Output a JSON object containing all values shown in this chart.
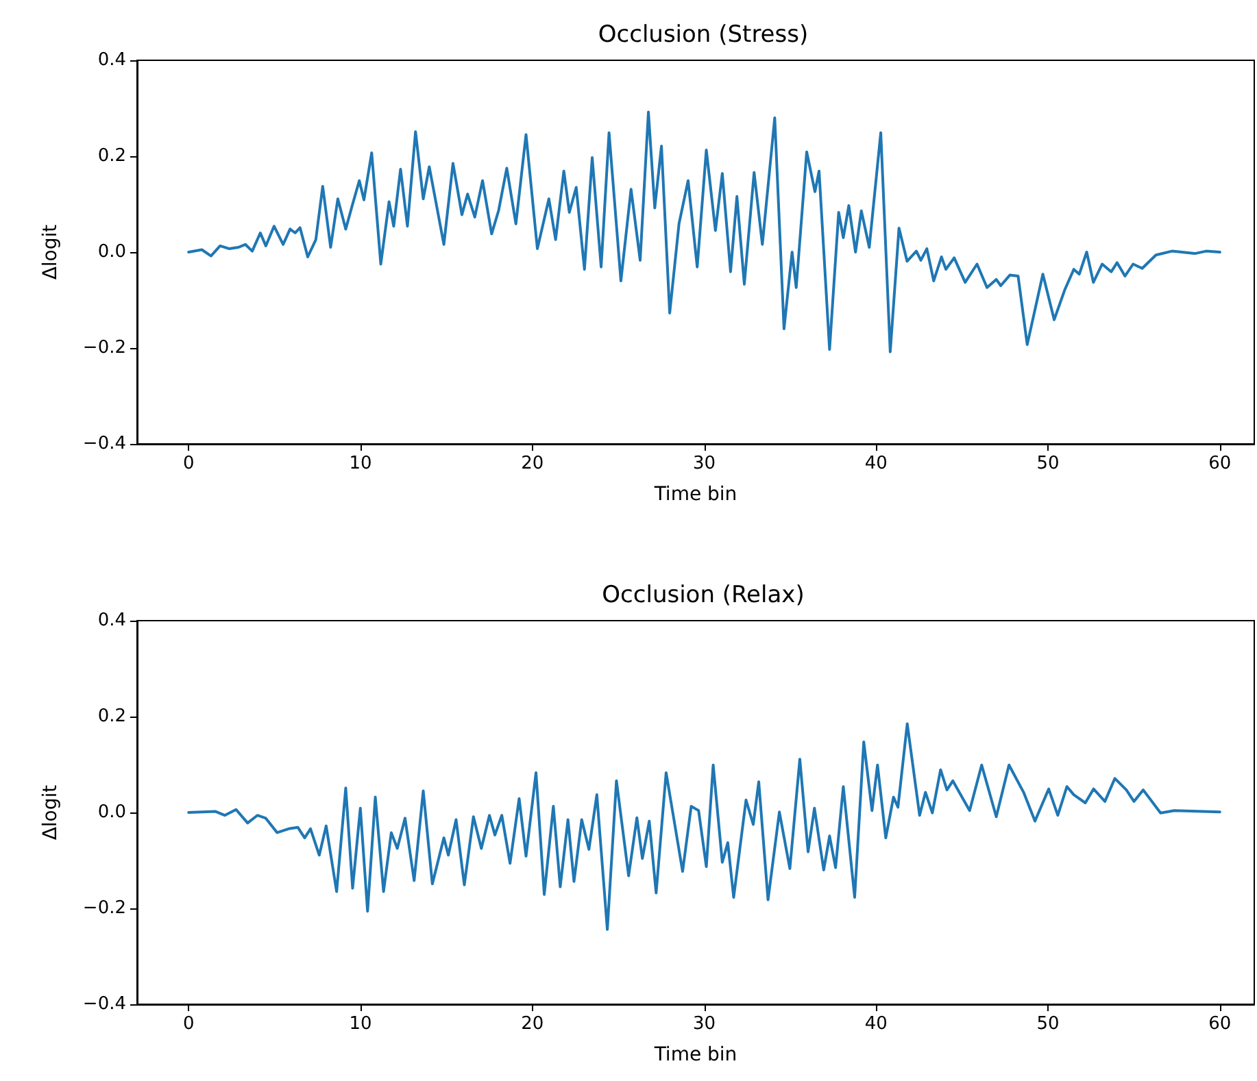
{
  "chart_data": [
    {
      "type": "line",
      "title": "Occlusion (Stress)",
      "xlabel": "Time bin",
      "ylabel": "Δlogit",
      "color": "#1f77b4",
      "x": [
        0,
        0.77,
        1.3,
        1.83,
        2.37,
        2.9,
        3.3,
        3.7,
        4.17,
        4.49,
        4.97,
        5.5,
        5.9,
        6.2,
        6.48,
        6.93,
        7.4,
        7.8,
        8.26,
        8.68,
        9.14,
        9.54,
        9.93,
        10.2,
        10.65,
        11.18,
        11.66,
        11.93,
        12.33,
        12.73,
        13.2,
        13.65,
        14.0,
        14.85,
        15.38,
        15.9,
        16.23,
        16.65,
        17.1,
        17.63,
        18.03,
        18.51,
        19.04,
        19.63,
        20.29,
        20.96,
        21.35,
        21.83,
        22.15,
        22.55,
        23.03,
        23.48,
        24.0,
        24.46,
        25.15,
        25.74,
        26.27,
        26.75,
        27.12,
        27.51,
        27.99,
        28.53,
        29.06,
        29.59,
        30.12,
        30.65,
        31.05,
        31.53,
        31.9,
        32.33,
        32.9,
        33.38,
        34.1,
        34.64,
        35.11,
        35.35,
        35.96,
        36.44,
        36.68,
        37.29,
        37.82,
        38.09,
        38.41,
        38.8,
        39.14,
        39.6,
        40.27,
        40.82,
        41.33,
        41.8,
        42.34,
        42.6,
        42.95,
        43.35,
        43.8,
        44.06,
        44.54,
        45.18,
        45.87,
        46.45,
        46.99,
        47.25,
        47.78,
        48.26,
        48.79,
        49.7,
        50.36,
        50.97,
        51.5,
        51.82,
        52.25,
        52.64,
        53.15,
        53.68,
        54.02,
        54.48,
        54.95,
        55.48,
        56.28,
        57.21,
        58.54,
        59.2,
        60
      ],
      "values": [
        0,
        0.005,
        -0.008,
        0.013,
        0.007,
        0.01,
        0.016,
        0.002,
        0.04,
        0.013,
        0.054,
        0.016,
        0.048,
        0.04,
        0.051,
        -0.01,
        0.026,
        0.137,
        0.01,
        0.111,
        0.048,
        0.1,
        0.149,
        0.109,
        0.207,
        -0.025,
        0.105,
        0.054,
        0.173,
        0.054,
        0.251,
        0.111,
        0.178,
        0.016,
        0.185,
        0.078,
        0.121,
        0.073,
        0.149,
        0.038,
        0.086,
        0.175,
        0.059,
        0.245,
        0.007,
        0.111,
        0.026,
        0.169,
        0.083,
        0.135,
        -0.036,
        0.197,
        -0.031,
        0.249,
        -0.06,
        0.131,
        -0.017,
        0.292,
        0.092,
        0.221,
        -0.127,
        0.059,
        0.149,
        -0.031,
        0.213,
        0.045,
        0.164,
        -0.041,
        0.116,
        -0.067,
        0.166,
        0.016,
        0.28,
        -0.16,
        0,
        -0.074,
        0.209,
        0.126,
        0.169,
        -0.203,
        0.083,
        0.03,
        0.097,
        0,
        0.086,
        0.01,
        0.249,
        -0.208,
        0.05,
        -0.019,
        0.002,
        -0.017,
        0.007,
        -0.06,
        -0.01,
        -0.036,
        -0.012,
        -0.063,
        -0.025,
        -0.074,
        -0.057,
        -0.07,
        -0.048,
        -0.05,
        -0.193,
        -0.046,
        -0.141,
        -0.079,
        -0.036,
        -0.046,
        0,
        -0.063,
        -0.025,
        -0.041,
        -0.022,
        -0.05,
        -0.025,
        -0.034,
        -0.006,
        0.002,
        -0.003,
        0.002,
        0
      ],
      "xlim": [
        -3,
        62
      ],
      "ylim": [
        -0.4,
        0.4
      ],
      "xticks": [
        0,
        10,
        20,
        30,
        40,
        50,
        60
      ],
      "yticks": [
        {
          "value": -0.4,
          "label": "−0.4"
        },
        {
          "value": -0.2,
          "label": "−0.2"
        },
        {
          "value": 0,
          "label": "0.0"
        },
        {
          "value": 0.2,
          "label": "0.2"
        },
        {
          "value": 0.4,
          "label": "0.4"
        }
      ]
    },
    {
      "type": "line",
      "title": "Occlusion (Relax)",
      "xlabel": "Time bin",
      "ylabel": "Δlogit",
      "color": "#1f77b4",
      "x": [
        0,
        1.57,
        2.1,
        2.76,
        3.43,
        4.0,
        4.49,
        5.15,
        5.82,
        6.35,
        6.75,
        7.09,
        7.6,
        8.0,
        8.61,
        9.14,
        9.54,
        9.99,
        10.41,
        10.86,
        11.34,
        11.79,
        12.14,
        12.59,
        13.12,
        13.65,
        14.18,
        14.85,
        15.11,
        15.56,
        16.04,
        16.57,
        17.03,
        17.5,
        17.82,
        18.22,
        18.7,
        19.23,
        19.63,
        20.21,
        20.69,
        21.22,
        21.62,
        22.07,
        22.42,
        22.87,
        23.29,
        23.75,
        24.36,
        24.89,
        25.6,
        26.08,
        26.4,
        26.8,
        27.2,
        27.78,
        28.26,
        28.74,
        29.24,
        29.67,
        30.12,
        30.52,
        31.05,
        31.37,
        31.71,
        32.43,
        32.85,
        33.17,
        33.71,
        34.37,
        34.98,
        35.56,
        36.04,
        36.41,
        36.95,
        37.29,
        37.64,
        38.09,
        38.75,
        39.28,
        39.76,
        40.08,
        40.56,
        41.01,
        41.27,
        41.81,
        42.53,
        42.87,
        43.27,
        43.75,
        44.12,
        44.46,
        45.44,
        46.14,
        46.99,
        47.73,
        48.58,
        49.24,
        50.04,
        50.57,
        51.1,
        51.5,
        52.17,
        52.65,
        53.31,
        53.89,
        54.56,
        55.0,
        55.54,
        56.55,
        57.35,
        60
      ],
      "values": [
        0,
        0.002,
        -0.006,
        0.006,
        -0.022,
        -0.006,
        -0.012,
        -0.042,
        -0.034,
        -0.031,
        -0.053,
        -0.034,
        -0.089,
        -0.028,
        -0.165,
        0.051,
        -0.158,
        0.009,
        -0.206,
        0.032,
        -0.165,
        -0.042,
        -0.075,
        -0.012,
        -0.142,
        0.045,
        -0.149,
        -0.053,
        -0.089,
        -0.015,
        -0.151,
        -0.009,
        -0.075,
        -0.006,
        -0.047,
        -0.006,
        -0.106,
        0.029,
        -0.091,
        0.083,
        -0.171,
        0.013,
        -0.155,
        -0.015,
        -0.144,
        -0.015,
        -0.077,
        0.037,
        -0.244,
        0.066,
        -0.132,
        -0.011,
        -0.096,
        -0.018,
        -0.168,
        0.083,
        -0.02,
        -0.123,
        0.013,
        0.004,
        -0.113,
        0.099,
        -0.104,
        -0.063,
        -0.177,
        0.026,
        -0.025,
        0.064,
        -0.182,
        0.001,
        -0.117,
        0.111,
        -0.082,
        0.009,
        -0.12,
        -0.049,
        -0.115,
        0.054,
        -0.177,
        0.147,
        0.004,
        0.099,
        -0.053,
        0.032,
        0.011,
        0.185,
        -0.006,
        0.042,
        -0.001,
        0.089,
        0.047,
        0.066,
        0.004,
        0.099,
        -0.009,
        0.099,
        0.042,
        -0.018,
        0.049,
        -0.006,
        0.054,
        0.037,
        0.02,
        0.049,
        0.023,
        0.071,
        0.047,
        0.023,
        0.047,
        -0.001,
        0.004,
        0.001
      ],
      "xlim": [
        -3,
        62
      ],
      "ylim": [
        -0.4,
        0.4
      ],
      "xticks": [
        0,
        10,
        20,
        30,
        40,
        50,
        60
      ],
      "yticks": [
        {
          "value": -0.4,
          "label": "−0.4"
        },
        {
          "value": -0.2,
          "label": "−0.2"
        },
        {
          "value": 0,
          "label": "0.0"
        },
        {
          "value": 0.2,
          "label": "0.2"
        },
        {
          "value": 0.4,
          "label": "0.4"
        }
      ]
    }
  ]
}
